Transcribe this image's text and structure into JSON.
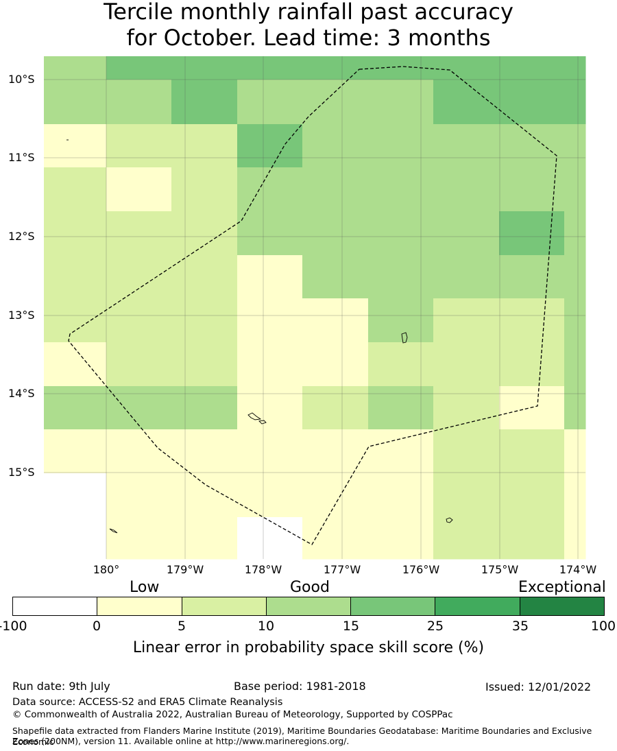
{
  "title_line1": "Tercile monthly rainfall past accuracy",
  "title_line2": "for October. Lead time: 3 months",
  "map": {
    "lat_labels": [
      "10°S",
      "11°S",
      "12°S",
      "13°S",
      "14°S",
      "15°S"
    ],
    "lon_labels": [
      "180°",
      "179°W",
      "178°W",
      "177°W",
      "176°W",
      "175°W",
      "174°W"
    ],
    "boundary_style": "dashed",
    "palette": [
      "#ffffff",
      "#ffffcc",
      "#d9f0a3",
      "#addd8e",
      "#78c679",
      "#41ab5d",
      "#238443"
    ]
  },
  "legend": {
    "category_low": "Low",
    "category_good": "Good",
    "category_exceptional": "Exceptional",
    "bounds": [
      "-100",
      "0",
      "5",
      "10",
      "15",
      "25",
      "35",
      "100"
    ],
    "label": "Linear error in probability space skill score (%)"
  },
  "footer": {
    "run_date": "Run date: 9th July",
    "base_period": "Base period: 1981-2018",
    "issued": "Issued: 12/01/2022",
    "data_source": "Data source: ACCESS-S2 and ERA5 Climate Reanalysis",
    "copyright": "© Commonwealth of Australia 2022, Australian Bureau of Meteorology, Supported by COSPPac",
    "shapefile_line1": "Shapefile data extracted from Flanders Marine Institute (2019), Maritime Boundaries Geodatabase: Maritime Boundaries and Exclusive Economic",
    "shapefile_line2": "Zones (200NM), version 11. Available online at http://www.marineregions.org/."
  }
}
